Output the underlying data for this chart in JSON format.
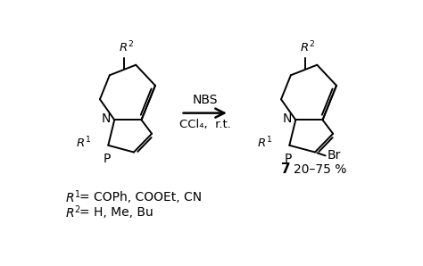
{
  "bg_color": "#ffffff",
  "fig_width": 4.74,
  "fig_height": 2.98,
  "dpi": 100,
  "nbs_label": "NBS",
  "ccl4_label": "CCl₄,  r.t.",
  "yield_number": "7",
  "yield_percent": "20–75 %",
  "r1_label": "R¹ = COPh, COOEt, CN",
  "r2_label": "R² = H, Me, Bu",
  "text_color": "#000000"
}
